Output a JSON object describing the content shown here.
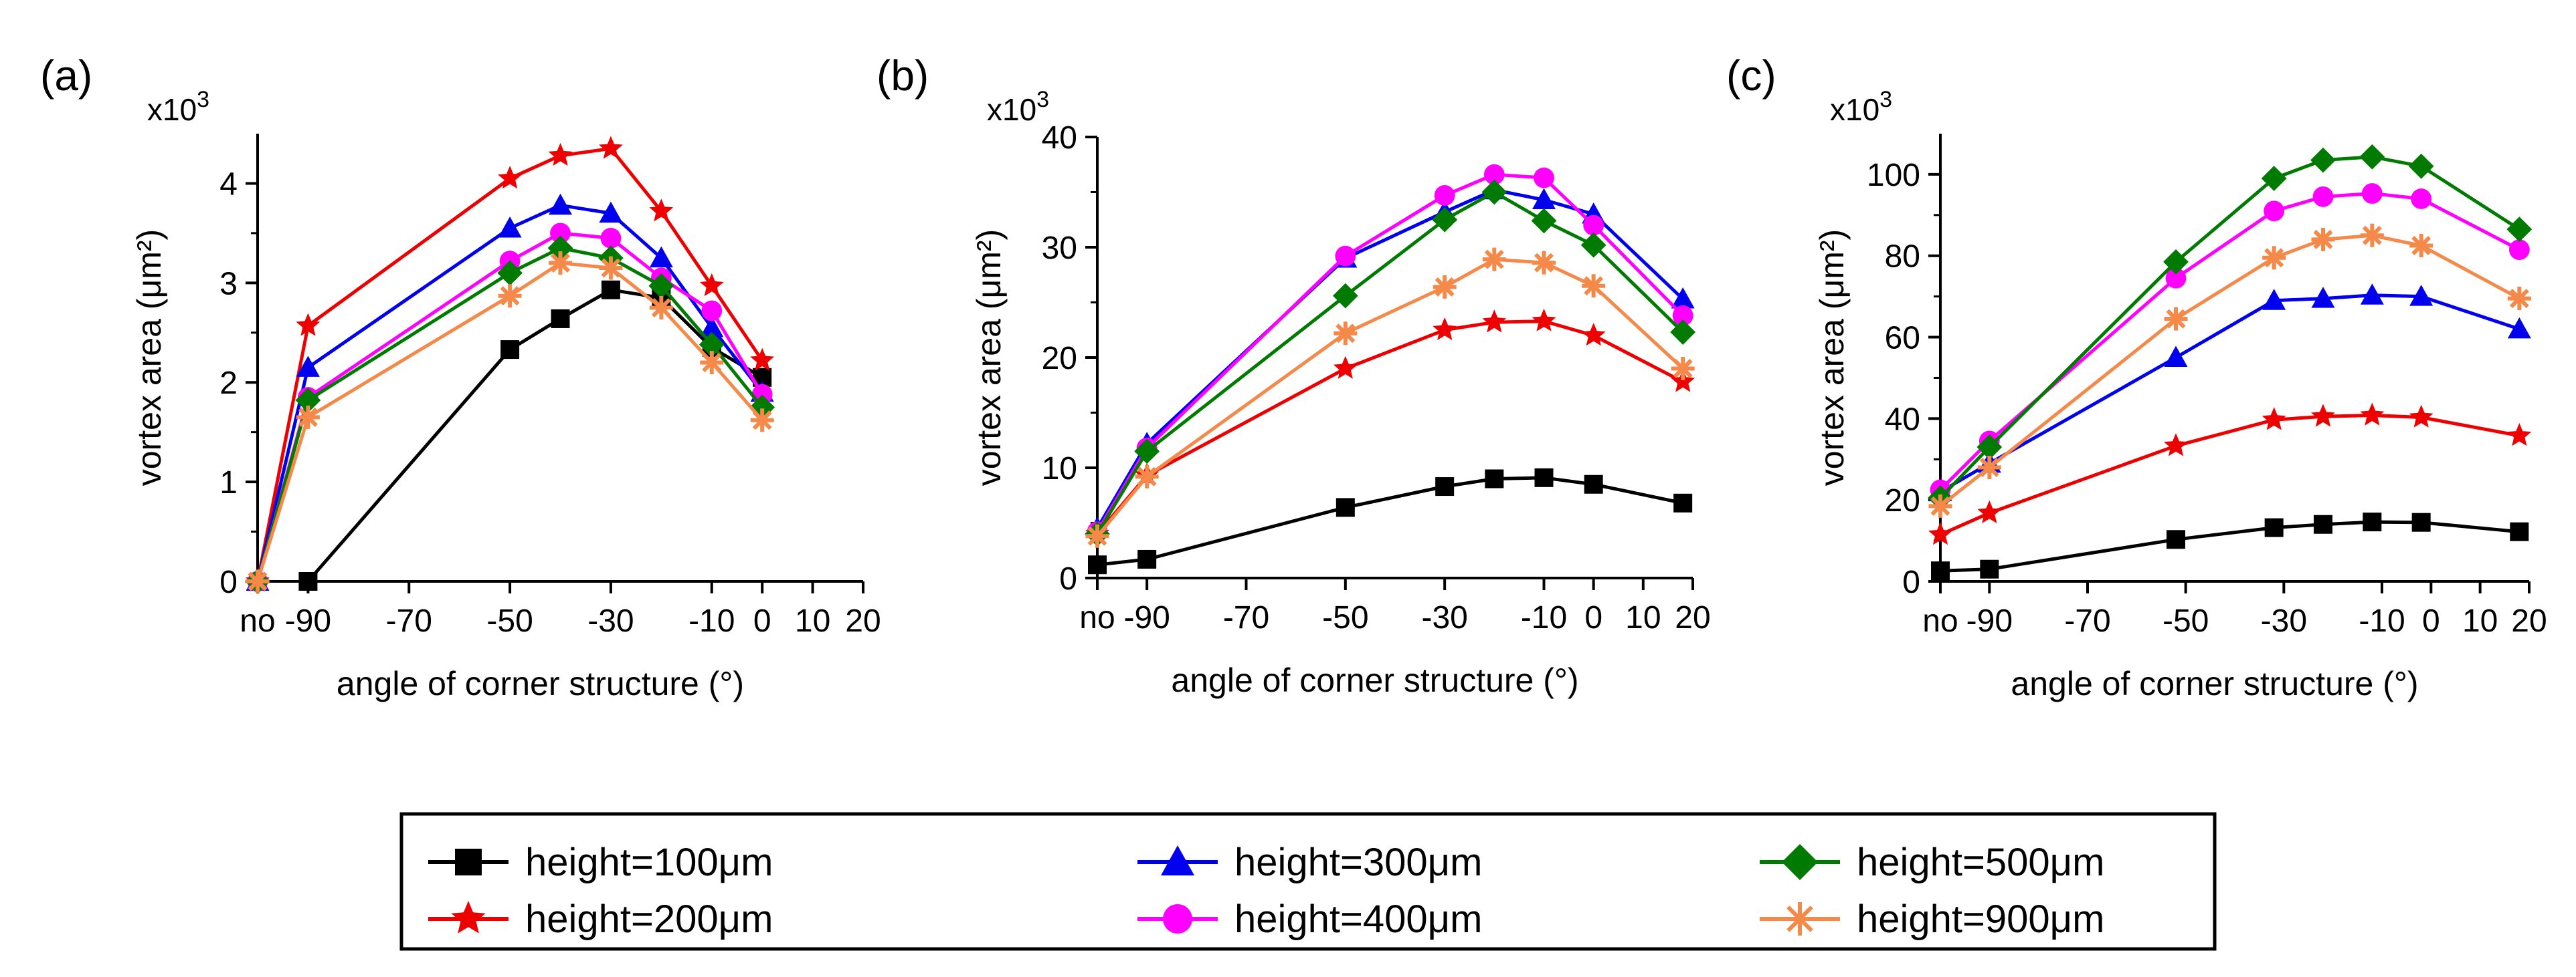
{
  "chart_data": [
    {
      "type": "line",
      "panel": "(a)",
      "xlabel": "angle of corner structure (°)",
      "ylabel": "vortex area (μm²)",
      "ymultiplier": "x10",
      "ymultiplier_exp": "3",
      "xticks": [
        "no",
        "-90",
        "-70",
        "-50",
        "-30",
        "-10",
        "0",
        "10",
        "20"
      ],
      "xtick_values": [
        -100,
        -90,
        -70,
        -50,
        -30,
        -10,
        0,
        10,
        20
      ],
      "xlim": [
        -100,
        20
      ],
      "yticks": [
        "0",
        "1",
        "2",
        "3",
        "4"
      ],
      "ytick_values": [
        0,
        1,
        2,
        3,
        4
      ],
      "ylim": [
        0,
        4.5
      ],
      "series": [
        {
          "name": "height=100μm",
          "x": [
            -90,
            -50,
            -40,
            -30,
            -20,
            -10,
            0
          ],
          "values": [
            0,
            2.33,
            2.64,
            2.93,
            2.85,
            2.35,
            2.05
          ]
        },
        {
          "name": "height=200μm",
          "x": [
            -100,
            -90,
            -50,
            -40,
            -30,
            -20,
            -10,
            0
          ],
          "values": [
            0,
            2.57,
            4.05,
            4.28,
            4.35,
            3.72,
            2.97,
            2.22
          ]
        },
        {
          "name": "height=300μm",
          "x": [
            -100,
            -90,
            -50,
            -40,
            -30,
            -20,
            -10,
            0
          ],
          "values": [
            0,
            2.15,
            3.55,
            3.78,
            3.7,
            3.25,
            2.55,
            1.9
          ]
        },
        {
          "name": "height=400μm",
          "x": [
            -100,
            -90,
            -50,
            -40,
            -30,
            -20,
            -10,
            0
          ],
          "values": [
            0,
            1.85,
            3.22,
            3.5,
            3.45,
            3.05,
            2.72,
            1.88
          ]
        },
        {
          "name": "height=500μm",
          "x": [
            -100,
            -90,
            -50,
            -40,
            -30,
            -20,
            -10,
            0
          ],
          "values": [
            0,
            1.82,
            3.1,
            3.35,
            3.25,
            2.97,
            2.38,
            1.75
          ]
        },
        {
          "name": "height=900μm",
          "x": [
            -100,
            -90,
            -50,
            -40,
            -30,
            -20,
            -10,
            0
          ],
          "values": [
            0,
            1.65,
            2.87,
            3.2,
            3.15,
            2.75,
            2.2,
            1.62
          ]
        }
      ]
    },
    {
      "type": "line",
      "panel": "(b)",
      "xlabel": "angle of corner structure (°)",
      "ylabel": "vortex area (μm²)",
      "ymultiplier": "x10",
      "ymultiplier_exp": "3",
      "xticks": [
        "no",
        "-90",
        "-70",
        "-50",
        "-30",
        "-10",
        "0",
        "10",
        "20"
      ],
      "xtick_values": [
        -100,
        -90,
        -70,
        -50,
        -30,
        -10,
        0,
        10,
        20
      ],
      "xlim": [
        -100,
        20
      ],
      "yticks": [
        "0",
        "10",
        "20",
        "30",
        "40"
      ],
      "ytick_values": [
        0,
        10,
        20,
        30,
        40
      ],
      "ylim": [
        0,
        40
      ],
      "series": [
        {
          "name": "height=100μm",
          "x": [
            -100,
            -90,
            -50,
            -30,
            -20,
            -10,
            0,
            18
          ],
          "values": [
            1.2,
            1.7,
            6.4,
            8.3,
            9.0,
            9.1,
            8.5,
            6.8
          ]
        },
        {
          "name": "height=200μm",
          "x": [
            -100,
            -90,
            -50,
            -30,
            -20,
            -10,
            0,
            18
          ],
          "values": [
            4.0,
            9.3,
            19.0,
            22.5,
            23.2,
            23.3,
            22.0,
            17.8
          ]
        },
        {
          "name": "height=300μm",
          "x": [
            -100,
            -90,
            -50,
            -30,
            -20,
            -10,
            0,
            18
          ],
          "values": [
            4.5,
            12.2,
            29.0,
            33.2,
            35.2,
            34.3,
            33.0,
            25.3
          ]
        },
        {
          "name": "height=400μm",
          "x": [
            -100,
            -90,
            -50,
            -30,
            -20,
            -10,
            0,
            18
          ],
          "values": [
            4.2,
            11.8,
            29.2,
            34.7,
            36.6,
            36.3,
            32.0,
            23.8
          ]
        },
        {
          "name": "height=500μm",
          "x": [
            -100,
            -90,
            -50,
            -30,
            -20,
            -10,
            0,
            18
          ],
          "values": [
            4.0,
            11.5,
            25.6,
            32.5,
            35.0,
            32.4,
            30.2,
            22.3
          ]
        },
        {
          "name": "height=900μm",
          "x": [
            -100,
            -90,
            -50,
            -30,
            -20,
            -10,
            0,
            18
          ],
          "values": [
            3.8,
            9.2,
            22.2,
            26.4,
            28.9,
            28.6,
            26.5,
            19.0
          ]
        }
      ]
    },
    {
      "type": "line",
      "panel": "(c)",
      "xlabel": "angle of corner structure (°)",
      "ylabel": "vortex area (μm²)",
      "ymultiplier": "x10",
      "ymultiplier_exp": "3",
      "xticks": [
        "no",
        "-90",
        "-70",
        "-50",
        "-30",
        "-10",
        "0",
        "10",
        "20"
      ],
      "xtick_values": [
        -100,
        -90,
        -70,
        -50,
        -30,
        -10,
        0,
        10,
        20
      ],
      "xlim": [
        -100,
        20
      ],
      "yticks": [
        "0",
        "20",
        "40",
        "60",
        "80",
        "100"
      ],
      "ytick_values": [
        0,
        20,
        40,
        60,
        80,
        100
      ],
      "ylim": [
        0,
        110
      ],
      "series": [
        {
          "name": "height=100μm",
          "x": [
            -100,
            -90,
            -52,
            -32,
            -22,
            -12,
            -2,
            18
          ],
          "values": [
            2.6,
            3.0,
            10.3,
            13.2,
            14.0,
            14.6,
            14.5,
            12.2
          ]
        },
        {
          "name": "height=200μm",
          "x": [
            -100,
            -90,
            -52,
            -32,
            -22,
            -12,
            -2,
            18
          ],
          "values": [
            11.5,
            16.8,
            33.3,
            39.7,
            40.5,
            40.8,
            40.3,
            35.8
          ]
        },
        {
          "name": "height=300μm",
          "x": [
            -100,
            -90,
            -52,
            -32,
            -22,
            -12,
            -2,
            18
          ],
          "values": [
            22.0,
            29.0,
            55.0,
            69.0,
            69.5,
            70.3,
            70.0,
            62.0
          ]
        },
        {
          "name": "height=400μm",
          "x": [
            -100,
            -90,
            -52,
            -32,
            -22,
            -12,
            -2,
            18
          ],
          "values": [
            22.5,
            34.5,
            74.5,
            91.0,
            94.5,
            95.3,
            94.0,
            81.5
          ]
        },
        {
          "name": "height=500μm",
          "x": [
            -100,
            -90,
            -52,
            -32,
            -22,
            -12,
            -2,
            18
          ],
          "values": [
            20.5,
            33.0,
            78.5,
            99.0,
            103.5,
            104.3,
            102.0,
            86.5
          ]
        },
        {
          "name": "height=900μm",
          "x": [
            -100,
            -90,
            -52,
            -32,
            -22,
            -12,
            -2,
            18
          ],
          "values": [
            18.5,
            28.0,
            64.5,
            79.5,
            84.0,
            85.0,
            82.5,
            69.5
          ]
        }
      ]
    }
  ],
  "legend": [
    {
      "label": "height=100μm",
      "color": "#000000",
      "marker": "square"
    },
    {
      "label": "height=300μm",
      "color": "#0000ee",
      "marker": "triangle"
    },
    {
      "label": "height=500μm",
      "color": "#007a00",
      "marker": "diamond"
    },
    {
      "label": "height=200μm",
      "color": "#ee0000",
      "marker": "star"
    },
    {
      "label": "height=400μm",
      "color": "#ff00ff",
      "marker": "circle"
    },
    {
      "label": "height=900μm",
      "color": "#f4894a",
      "marker": "asterisk"
    }
  ],
  "series_styles": [
    {
      "color": "#000000",
      "marker": "square"
    },
    {
      "color": "#ee0000",
      "marker": "star"
    },
    {
      "color": "#0000ee",
      "marker": "triangle"
    },
    {
      "color": "#ff00ff",
      "marker": "circle"
    },
    {
      "color": "#007a00",
      "marker": "diamond"
    },
    {
      "color": "#f4894a",
      "marker": "asterisk"
    }
  ]
}
